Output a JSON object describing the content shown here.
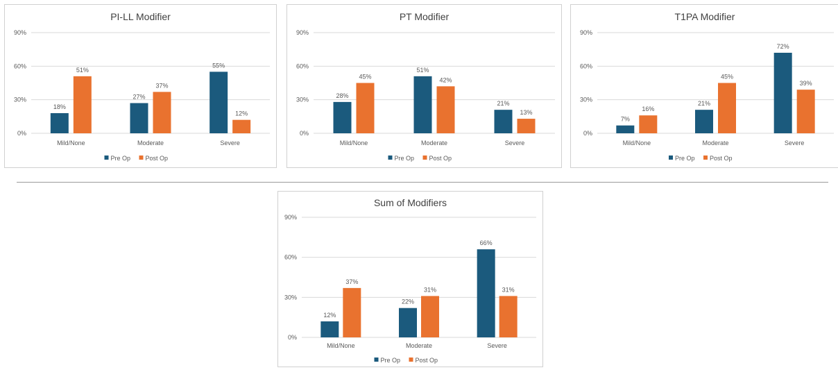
{
  "colors": {
    "pre": "#1b5a7d",
    "post": "#e9722f",
    "grid": "#d9d9d9",
    "text": "#595959",
    "title": "#404040"
  },
  "chart_data": [
    {
      "type": "bar",
      "title": "PI-LL Modifier",
      "categories": [
        "Mild/None",
        "Moderate",
        "Severe"
      ],
      "series": [
        {
          "name": "Pre Op",
          "values": [
            18,
            27,
            55
          ],
          "labels": [
            "18%",
            "27%",
            "55%"
          ]
        },
        {
          "name": "Post Op",
          "values": [
            51,
            37,
            12
          ],
          "labels": [
            "51%",
            "37%",
            "12%"
          ]
        }
      ],
      "yticks": [
        "0%",
        "30%",
        "60%",
        "90%"
      ],
      "ylim": [
        0,
        90
      ],
      "grid": true,
      "legend": "bottom"
    },
    {
      "type": "bar",
      "title": "PT Modifier",
      "categories": [
        "Mild/None",
        "Moderate",
        "Severe"
      ],
      "series": [
        {
          "name": "Pre Op",
          "values": [
            28,
            51,
            21
          ],
          "labels": [
            "28%",
            "51%",
            "21%"
          ]
        },
        {
          "name": "Post Op",
          "values": [
            45,
            42,
            13
          ],
          "labels": [
            "45%",
            "42%",
            "13%"
          ]
        }
      ],
      "yticks": [
        "0%",
        "30%",
        "60%",
        "90%"
      ],
      "ylim": [
        0,
        90
      ],
      "grid": true,
      "legend": "bottom"
    },
    {
      "type": "bar",
      "title": "T1PA Modifier",
      "categories": [
        "Mild/None",
        "Moderate",
        "Severe"
      ],
      "series": [
        {
          "name": "Pre Op",
          "values": [
            7,
            21,
            72
          ],
          "labels": [
            "7%",
            "21%",
            "72%"
          ]
        },
        {
          "name": "Post Op",
          "values": [
            16,
            45,
            39
          ],
          "labels": [
            "16%",
            "45%",
            "39%"
          ]
        }
      ],
      "yticks": [
        "0%",
        "30%",
        "60%",
        "90%"
      ],
      "ylim": [
        0,
        90
      ],
      "grid": true,
      "legend": "bottom"
    },
    {
      "type": "bar",
      "title": "Sum of Modifiers",
      "categories": [
        "Mild/None",
        "Moderate",
        "Severe"
      ],
      "series": [
        {
          "name": "Pre Op",
          "values": [
            12,
            22,
            66
          ],
          "labels": [
            "12%",
            "22%",
            "66%"
          ]
        },
        {
          "name": "Post Op",
          "values": [
            37,
            31,
            31
          ],
          "labels": [
            "37%",
            "31%",
            "31%"
          ]
        }
      ],
      "yticks": [
        "0%",
        "30%",
        "60%",
        "90%"
      ],
      "ylim": [
        0,
        90
      ],
      "grid": true,
      "legend": "bottom"
    }
  ]
}
